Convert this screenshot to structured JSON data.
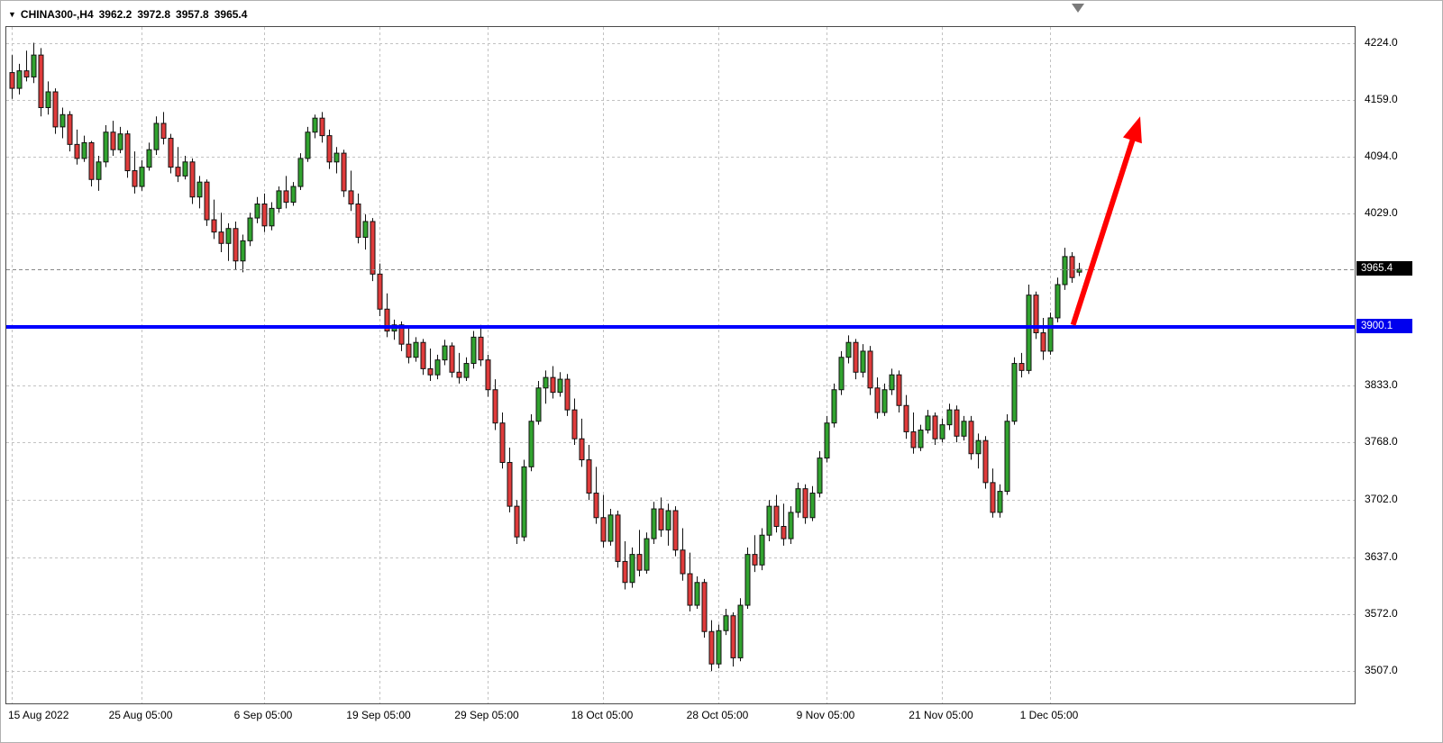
{
  "header": {
    "dropdown_icon": "▼",
    "symbol": "CHINA300-,H4",
    "open": "3962.2",
    "high": "3972.8",
    "low": "3957.8",
    "close": "3965.4"
  },
  "chart_data": {
    "type": "candlestick",
    "title": "CHINA300-,H4",
    "symbol": "CHINA300-",
    "timeframe": "H4",
    "grid": "on",
    "background": "#ffffff",
    "y_axis": {
      "range": [
        3470,
        4242
      ],
      "ticks": [
        "4224.0",
        "4159.0",
        "4094.0",
        "4029.0",
        "3833.0",
        "3768.0",
        "3702.0",
        "3637.0",
        "3572.0",
        "3507.0"
      ]
    },
    "x_axis": {
      "ticks": [
        {
          "label": "15 Aug 2022",
          "index": 0,
          "align": "left"
        },
        {
          "label": "25 Aug 05:00",
          "index": 18
        },
        {
          "label": "6 Sep 05:00",
          "index": 35
        },
        {
          "label": "19 Sep 05:00",
          "index": 51
        },
        {
          "label": "29 Sep 05:00",
          "index": 66
        },
        {
          "label": "18 Oct 05:00",
          "index": 82
        },
        {
          "label": "28 Oct 05:00",
          "index": 98
        },
        {
          "label": "9 Nov 05:00",
          "index": 113
        },
        {
          "label": "21 Nov 05:00",
          "index": 129
        },
        {
          "label": "1 Dec 05:00",
          "index": 144
        }
      ]
    },
    "current_price": {
      "label": "3965.4",
      "value": 3965.4
    },
    "horizontal_line": {
      "label": "3900.1",
      "value": 3900.1,
      "color": "#0000FF",
      "width": 4
    },
    "trend_arrow": {
      "from_index": 147.2,
      "from_price": 3902,
      "to_index": 156.5,
      "to_price": 4140,
      "color": "#FF0000"
    },
    "shift_marker_index": 148,
    "candle_spacing": 8,
    "colors": {
      "up": "#31a32f",
      "down": "#df3b3b",
      "outline": "#111111",
      "wick": "#111111",
      "grid": "#c2c2c2",
      "current_price_line": "#888888",
      "badge_current_bg": "#000000",
      "badge_line_bg": "#0000EE"
    },
    "candles": [
      [
        4190,
        4210,
        4160,
        4172
      ],
      [
        4172,
        4200,
        4165,
        4192
      ],
      [
        4192,
        4215,
        4180,
        4185
      ],
      [
        4185,
        4224,
        4178,
        4210
      ],
      [
        4210,
        4218,
        4140,
        4150
      ],
      [
        4150,
        4180,
        4142,
        4168
      ],
      [
        4168,
        4172,
        4120,
        4128
      ],
      [
        4128,
        4150,
        4115,
        4142
      ],
      [
        4142,
        4146,
        4100,
        4108
      ],
      [
        4108,
        4125,
        4085,
        4092
      ],
      [
        4092,
        4118,
        4088,
        4110
      ],
      [
        4110,
        4112,
        4060,
        4068
      ],
      [
        4068,
        4095,
        4055,
        4088
      ],
      [
        4088,
        4130,
        4082,
        4122
      ],
      [
        4122,
        4135,
        4095,
        4102
      ],
      [
        4102,
        4128,
        4098,
        4120
      ],
      [
        4120,
        4124,
        4070,
        4078
      ],
      [
        4078,
        4100,
        4052,
        4060
      ],
      [
        4060,
        4090,
        4055,
        4082
      ],
      [
        4082,
        4110,
        4078,
        4102
      ],
      [
        4102,
        4140,
        4096,
        4132
      ],
      [
        4132,
        4145,
        4108,
        4115
      ],
      [
        4115,
        4120,
        4075,
        4082
      ],
      [
        4082,
        4105,
        4065,
        4072
      ],
      [
        4072,
        4095,
        4068,
        4088
      ],
      [
        4088,
        4092,
        4040,
        4048
      ],
      [
        4048,
        4072,
        4035,
        4065
      ],
      [
        4065,
        4068,
        4015,
        4022
      ],
      [
        4022,
        4045,
        4000,
        4008
      ],
      [
        4008,
        4030,
        3985,
        3995
      ],
      [
        3995,
        4018,
        3975,
        4012
      ],
      [
        4012,
        4020,
        3965,
        3975
      ],
      [
        3975,
        4005,
        3962,
        3998
      ],
      [
        3998,
        4030,
        3992,
        4024
      ],
      [
        4024,
        4048,
        4018,
        4040
      ],
      [
        4040,
        4052,
        4008,
        4015
      ],
      [
        4015,
        4042,
        4010,
        4035
      ],
      [
        4035,
        4060,
        4030,
        4055
      ],
      [
        4055,
        4072,
        4035,
        4042
      ],
      [
        4042,
        4065,
        4038,
        4060
      ],
      [
        4060,
        4098,
        4056,
        4092
      ],
      [
        4092,
        4128,
        4088,
        4122
      ],
      [
        4122,
        4142,
        4115,
        4138
      ],
      [
        4138,
        4145,
        4110,
        4118
      ],
      [
        4118,
        4125,
        4080,
        4088
      ],
      [
        4088,
        4105,
        4075,
        4098
      ],
      [
        4098,
        4102,
        4048,
        4055
      ],
      [
        4055,
        4078,
        4032,
        4040
      ],
      [
        4040,
        4052,
        3995,
        4002
      ],
      [
        4002,
        4028,
        3988,
        4020
      ],
      [
        4020,
        4024,
        3952,
        3960
      ],
      [
        3960,
        3972,
        3912,
        3920
      ],
      [
        3920,
        3938,
        3888,
        3895
      ],
      [
        3895,
        3908,
        3885,
        3902
      ],
      [
        3902,
        3906,
        3872,
        3880
      ],
      [
        3880,
        3898,
        3858,
        3865
      ],
      [
        3865,
        3888,
        3860,
        3882
      ],
      [
        3882,
        3886,
        3845,
        3852
      ],
      [
        3852,
        3875,
        3838,
        3845
      ],
      [
        3845,
        3868,
        3840,
        3862
      ],
      [
        3862,
        3885,
        3856,
        3878
      ],
      [
        3878,
        3882,
        3842,
        3848
      ],
      [
        3848,
        3870,
        3835,
        3842
      ],
      [
        3842,
        3865,
        3838,
        3858
      ],
      [
        3858,
        3895,
        3852,
        3888
      ],
      [
        3888,
        3902,
        3855,
        3862
      ],
      [
        3862,
        3868,
        3820,
        3828
      ],
      [
        3828,
        3840,
        3782,
        3790
      ],
      [
        3790,
        3802,
        3738,
        3745
      ],
      [
        3745,
        3762,
        3688,
        3695
      ],
      [
        3695,
        3702,
        3652,
        3660
      ],
      [
        3660,
        3748,
        3655,
        3740
      ],
      [
        3740,
        3800,
        3735,
        3792
      ],
      [
        3792,
        3838,
        3788,
        3830
      ],
      [
        3830,
        3850,
        3812,
        3842
      ],
      [
        3842,
        3855,
        3818,
        3825
      ],
      [
        3825,
        3848,
        3820,
        3840
      ],
      [
        3840,
        3846,
        3798,
        3805
      ],
      [
        3805,
        3818,
        3765,
        3772
      ],
      [
        3772,
        3795,
        3740,
        3748
      ],
      [
        3748,
        3765,
        3702,
        3710
      ],
      [
        3710,
        3740,
        3675,
        3682
      ],
      [
        3682,
        3708,
        3648,
        3655
      ],
      [
        3655,
        3692,
        3650,
        3685
      ],
      [
        3685,
        3690,
        3625,
        3632
      ],
      [
        3632,
        3655,
        3600,
        3608
      ],
      [
        3608,
        3648,
        3602,
        3640
      ],
      [
        3640,
        3668,
        3615,
        3622
      ],
      [
        3622,
        3665,
        3618,
        3658
      ],
      [
        3658,
        3700,
        3652,
        3692
      ],
      [
        3692,
        3705,
        3660,
        3668
      ],
      [
        3668,
        3698,
        3650,
        3690
      ],
      [
        3690,
        3695,
        3638,
        3645
      ],
      [
        3645,
        3670,
        3610,
        3618
      ],
      [
        3618,
        3642,
        3575,
        3582
      ],
      [
        3582,
        3615,
        3578,
        3608
      ],
      [
        3608,
        3612,
        3545,
        3552
      ],
      [
        3552,
        3565,
        3507,
        3515
      ],
      [
        3515,
        3560,
        3510,
        3553
      ],
      [
        3553,
        3578,
        3548,
        3570
      ],
      [
        3570,
        3574,
        3512,
        3522
      ],
      [
        3522,
        3590,
        3518,
        3582
      ],
      [
        3582,
        3648,
        3578,
        3640
      ],
      [
        3640,
        3662,
        3620,
        3628
      ],
      [
        3628,
        3670,
        3622,
        3662
      ],
      [
        3662,
        3702,
        3655,
        3695
      ],
      [
        3695,
        3708,
        3665,
        3672
      ],
      [
        3672,
        3698,
        3650,
        3658
      ],
      [
        3658,
        3695,
        3652,
        3688
      ],
      [
        3688,
        3722,
        3682,
        3715
      ],
      [
        3715,
        3720,
        3675,
        3682
      ],
      [
        3682,
        3718,
        3678,
        3710
      ],
      [
        3710,
        3758,
        3705,
        3750
      ],
      [
        3750,
        3798,
        3745,
        3790
      ],
      [
        3790,
        3835,
        3785,
        3828
      ],
      [
        3828,
        3872,
        3822,
        3865
      ],
      [
        3865,
        3890,
        3858,
        3882
      ],
      [
        3882,
        3886,
        3840,
        3848
      ],
      [
        3848,
        3880,
        3842,
        3872
      ],
      [
        3872,
        3878,
        3822,
        3830
      ],
      [
        3830,
        3842,
        3795,
        3802
      ],
      [
        3802,
        3835,
        3798,
        3828
      ],
      [
        3828,
        3852,
        3822,
        3845
      ],
      [
        3845,
        3850,
        3802,
        3810
      ],
      [
        3810,
        3822,
        3772,
        3780
      ],
      [
        3780,
        3802,
        3755,
        3762
      ],
      [
        3762,
        3788,
        3758,
        3782
      ],
      [
        3782,
        3805,
        3778,
        3798
      ],
      [
        3798,
        3802,
        3765,
        3772
      ],
      [
        3772,
        3795,
        3768,
        3788
      ],
      [
        3788,
        3812,
        3782,
        3805
      ],
      [
        3805,
        3810,
        3768,
        3775
      ],
      [
        3775,
        3798,
        3770,
        3792
      ],
      [
        3792,
        3798,
        3748,
        3755
      ],
      [
        3755,
        3778,
        3738,
        3770
      ],
      [
        3770,
        3775,
        3715,
        3722
      ],
      [
        3722,
        3738,
        3682,
        3688
      ],
      [
        3688,
        3720,
        3682,
        3712
      ],
      [
        3712,
        3800,
        3708,
        3792
      ],
      [
        3792,
        3865,
        3788,
        3858
      ],
      [
        3858,
        3870,
        3842,
        3850
      ],
      [
        3850,
        3948,
        3846,
        3936
      ],
      [
        3936,
        3940,
        3886,
        3893
      ],
      [
        3893,
        3910,
        3862,
        3872
      ],
      [
        3872,
        3916,
        3868,
        3910
      ],
      [
        3910,
        3956,
        3905,
        3948
      ],
      [
        3948,
        3990,
        3942,
        3980
      ],
      [
        3980,
        3985,
        3950,
        3956
      ],
      [
        3962.2,
        3972.8,
        3957.8,
        3965.4
      ]
    ]
  }
}
